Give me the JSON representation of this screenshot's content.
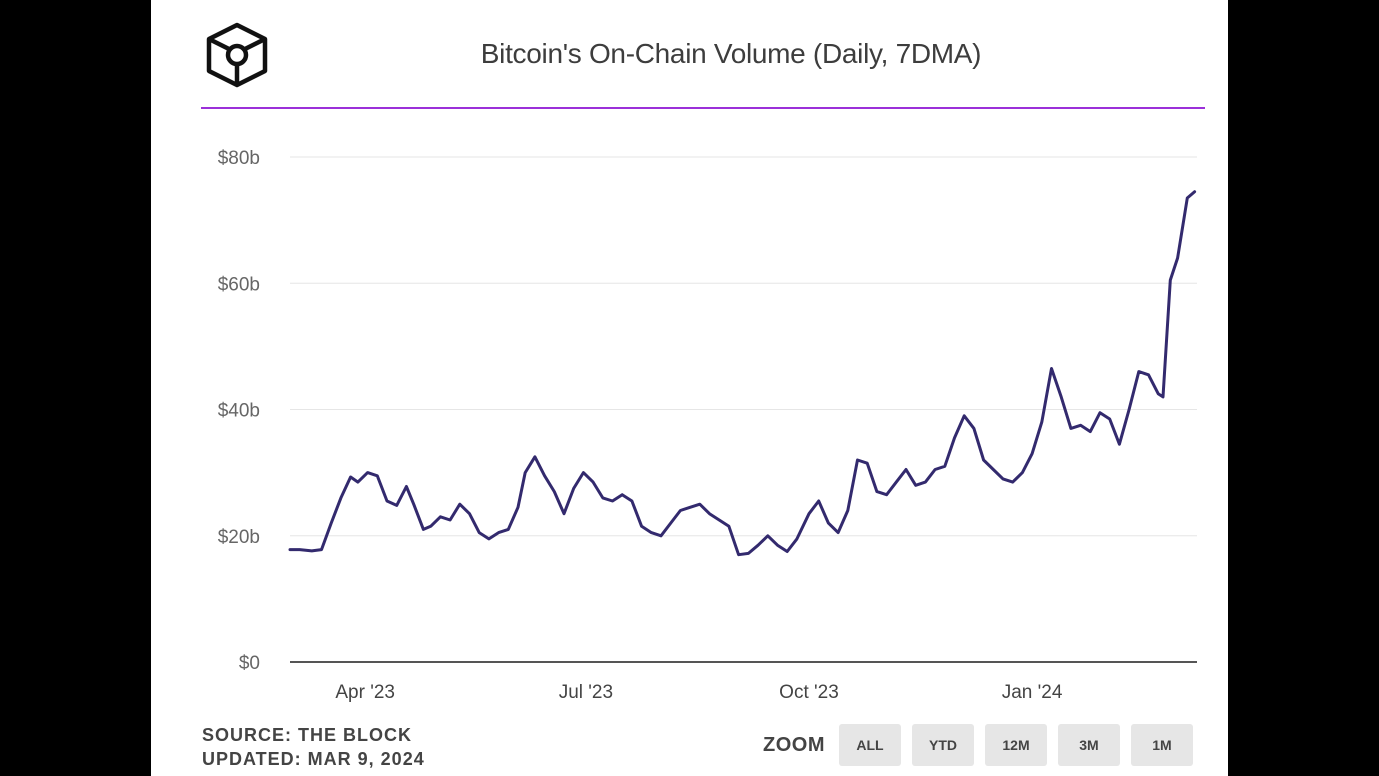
{
  "header": {
    "title": "Bitcoin's On-Chain Volume (Daily, 7DMA)",
    "logo_icon": "the-block-cube-logo-icon",
    "accent_color": "#9b30d9"
  },
  "footer": {
    "source": "SOURCE: THE BLOCK",
    "updated": "UPDATED: MAR 9, 2024"
  },
  "zoom": {
    "label": "ZOOM",
    "buttons": [
      "ALL",
      "YTD",
      "12M",
      "3M",
      "1M"
    ]
  },
  "chart_data": {
    "type": "line",
    "title": "Bitcoin's On-Chain Volume (Daily, 7DMA)",
    "xlabel": "",
    "ylabel": "",
    "x_range": [
      "2023-03-01",
      "2024-03-09"
    ],
    "ylim": [
      0,
      80
    ],
    "y_ticks": [
      0,
      20,
      40,
      60,
      80
    ],
    "y_tick_labels": [
      "$0",
      "$20b",
      "$40b",
      "$60b",
      "$80b"
    ],
    "x_ticks": [
      "2023-04-01",
      "2023-07-01",
      "2023-10-01",
      "2024-01-01"
    ],
    "x_tick_labels": [
      "Apr '23",
      "Jul '23",
      "Oct '23",
      "Jan '24"
    ],
    "grid": true,
    "legend": "none",
    "line_color": "#332a6e",
    "series": [
      {
        "x": [
          "2023-03-01",
          "2023-03-05",
          "2023-03-10",
          "2023-03-14",
          "2023-03-18",
          "2023-03-22",
          "2023-03-26",
          "2023-03-29",
          "2023-04-02",
          "2023-04-06",
          "2023-04-10",
          "2023-04-14",
          "2023-04-18",
          "2023-04-21",
          "2023-04-25",
          "2023-04-28",
          "2023-05-02",
          "2023-05-06",
          "2023-05-10",
          "2023-05-14",
          "2023-05-18",
          "2023-05-22",
          "2023-05-26",
          "2023-05-30",
          "2023-06-03",
          "2023-06-06",
          "2023-06-10",
          "2023-06-14",
          "2023-06-18",
          "2023-06-22",
          "2023-06-26",
          "2023-06-30",
          "2023-07-04",
          "2023-07-08",
          "2023-07-12",
          "2023-07-16",
          "2023-07-20",
          "2023-07-24",
          "2023-07-28",
          "2023-08-01",
          "2023-08-05",
          "2023-08-09",
          "2023-08-13",
          "2023-08-17",
          "2023-08-21",
          "2023-08-25",
          "2023-08-29",
          "2023-09-02",
          "2023-09-06",
          "2023-09-10",
          "2023-09-14",
          "2023-09-18",
          "2023-09-22",
          "2023-09-26",
          "2023-10-01",
          "2023-10-05",
          "2023-10-09",
          "2023-10-13",
          "2023-10-17",
          "2023-10-21",
          "2023-10-25",
          "2023-10-29",
          "2023-11-02",
          "2023-11-06",
          "2023-11-10",
          "2023-11-14",
          "2023-11-18",
          "2023-11-22",
          "2023-11-26",
          "2023-11-30",
          "2023-12-04",
          "2023-12-08",
          "2023-12-12",
          "2023-12-16",
          "2023-12-20",
          "2023-12-24",
          "2023-12-28",
          "2024-01-01",
          "2024-01-05",
          "2024-01-09",
          "2024-01-13",
          "2024-01-17",
          "2024-01-21",
          "2024-01-25",
          "2024-01-29",
          "2024-02-02",
          "2024-02-06",
          "2024-02-10",
          "2024-02-14",
          "2024-02-18",
          "2024-02-22",
          "2024-02-24",
          "2024-02-27",
          "2024-03-01",
          "2024-03-05",
          "2024-03-08"
        ],
        "values": [
          17.8,
          17.8,
          17.6,
          17.8,
          22.0,
          26.0,
          29.3,
          28.5,
          30.0,
          29.5,
          25.5,
          24.8,
          27.8,
          25.0,
          21.0,
          21.5,
          23.0,
          22.5,
          25.0,
          23.5,
          20.5,
          19.5,
          20.5,
          21.0,
          24.5,
          30.0,
          32.5,
          29.5,
          27.0,
          23.5,
          27.5,
          30.0,
          28.5,
          26.0,
          25.5,
          26.5,
          25.5,
          21.5,
          20.5,
          20.0,
          22.0,
          24.0,
          24.5,
          25.0,
          23.5,
          22.5,
          21.5,
          17.0,
          17.2,
          18.5,
          20.0,
          18.5,
          17.5,
          19.5,
          23.5,
          25.5,
          22.0,
          20.5,
          24.0,
          32.0,
          31.5,
          27.0,
          26.5,
          28.5,
          30.5,
          28.0,
          28.5,
          30.5,
          31.0,
          35.5,
          39.0,
          37.0,
          32.0,
          30.5,
          29.0,
          28.5,
          30.0,
          33.0,
          38.0,
          46.5,
          42.0,
          37.0,
          37.5,
          36.5,
          39.5,
          38.5,
          34.5,
          40.0,
          46.0,
          45.5,
          42.5,
          42.0,
          60.5,
          64.0,
          73.5,
          74.5
        ]
      }
    ]
  }
}
